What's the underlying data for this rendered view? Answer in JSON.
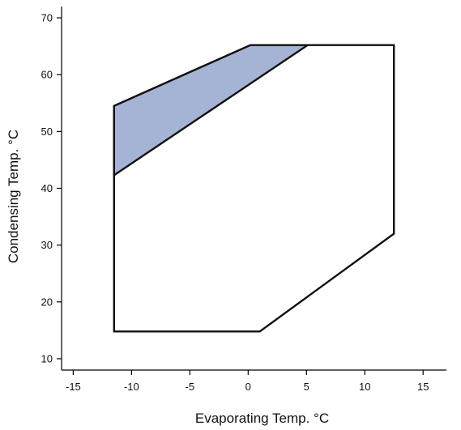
{
  "chart_data": {
    "type": "area",
    "title": "",
    "xlabel": "Evaporating Temp. °C",
    "ylabel": "Condensing Temp. °C",
    "xlim": [
      -16,
      17
    ],
    "ylim": [
      8,
      72
    ],
    "xticks": [
      -15,
      -10,
      -5,
      0,
      5,
      10,
      15
    ],
    "yticks": [
      10,
      20,
      30,
      40,
      50,
      60,
      70
    ],
    "x_tick_labels": [
      "-15",
      "-10",
      "-5",
      "0",
      "5",
      "10",
      "15"
    ],
    "y_tick_labels": [
      "10",
      "20",
      "30",
      "40",
      "50",
      "60",
      "70"
    ],
    "grid": false,
    "legend": "none",
    "series": [
      {
        "role": "operating-envelope",
        "points": [
          {
            "x": -11.5,
            "y": 14.8
          },
          {
            "x": 1.0,
            "y": 14.8
          },
          {
            "x": 12.5,
            "y": 32.0
          },
          {
            "x": 12.5,
            "y": 65.2
          },
          {
            "x": 0.2,
            "y": 65.2
          },
          {
            "x": -11.5,
            "y": 54.5
          }
        ],
        "color": "#ffffff"
      },
      {
        "role": "shaded-region",
        "points": [
          {
            "x": -11.5,
            "y": 54.5
          },
          {
            "x": 0.2,
            "y": 65.2
          },
          {
            "x": 5.1,
            "y": 65.2
          },
          {
            "x": -11.5,
            "y": 42.3
          }
        ],
        "color": "#a5b3d4"
      }
    ]
  }
}
